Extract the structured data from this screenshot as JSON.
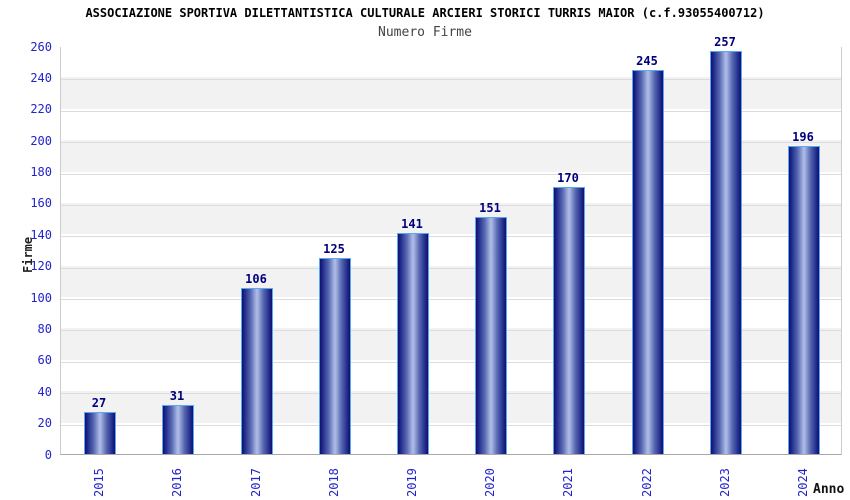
{
  "chart_data": {
    "type": "bar",
    "title": "ASSOCIAZIONE SPORTIVA DILETTANTISTICA CULTURALE ARCIERI STORICI TURRIS MAIOR (c.f.93055400712)",
    "subtitle": "Numero Firme",
    "xlabel": "Anno",
    "ylabel": "Firme",
    "categories": [
      "2015",
      "2016",
      "2017",
      "2018",
      "2019",
      "2020",
      "2021",
      "2022",
      "2023",
      "2024"
    ],
    "values": [
      27,
      31,
      106,
      125,
      141,
      151,
      170,
      245,
      257,
      196
    ],
    "ylim": [
      0,
      260
    ],
    "ytick_step": 20,
    "grid": "horizontal gridlines with alternating shaded bands",
    "legend_position": "none",
    "colors": {
      "tick_label": "#2323cc",
      "value_label": "#00007d",
      "bar_edge_dark": "#10106e",
      "bar_center_light": "#aab8e4",
      "bar_border": "#58a8f2",
      "band_shade": "#f2f2f2",
      "band_plain": "#ffffff",
      "gridline": "#dcdcdc",
      "title": "#000000",
      "subtitle": "#444444"
    }
  }
}
